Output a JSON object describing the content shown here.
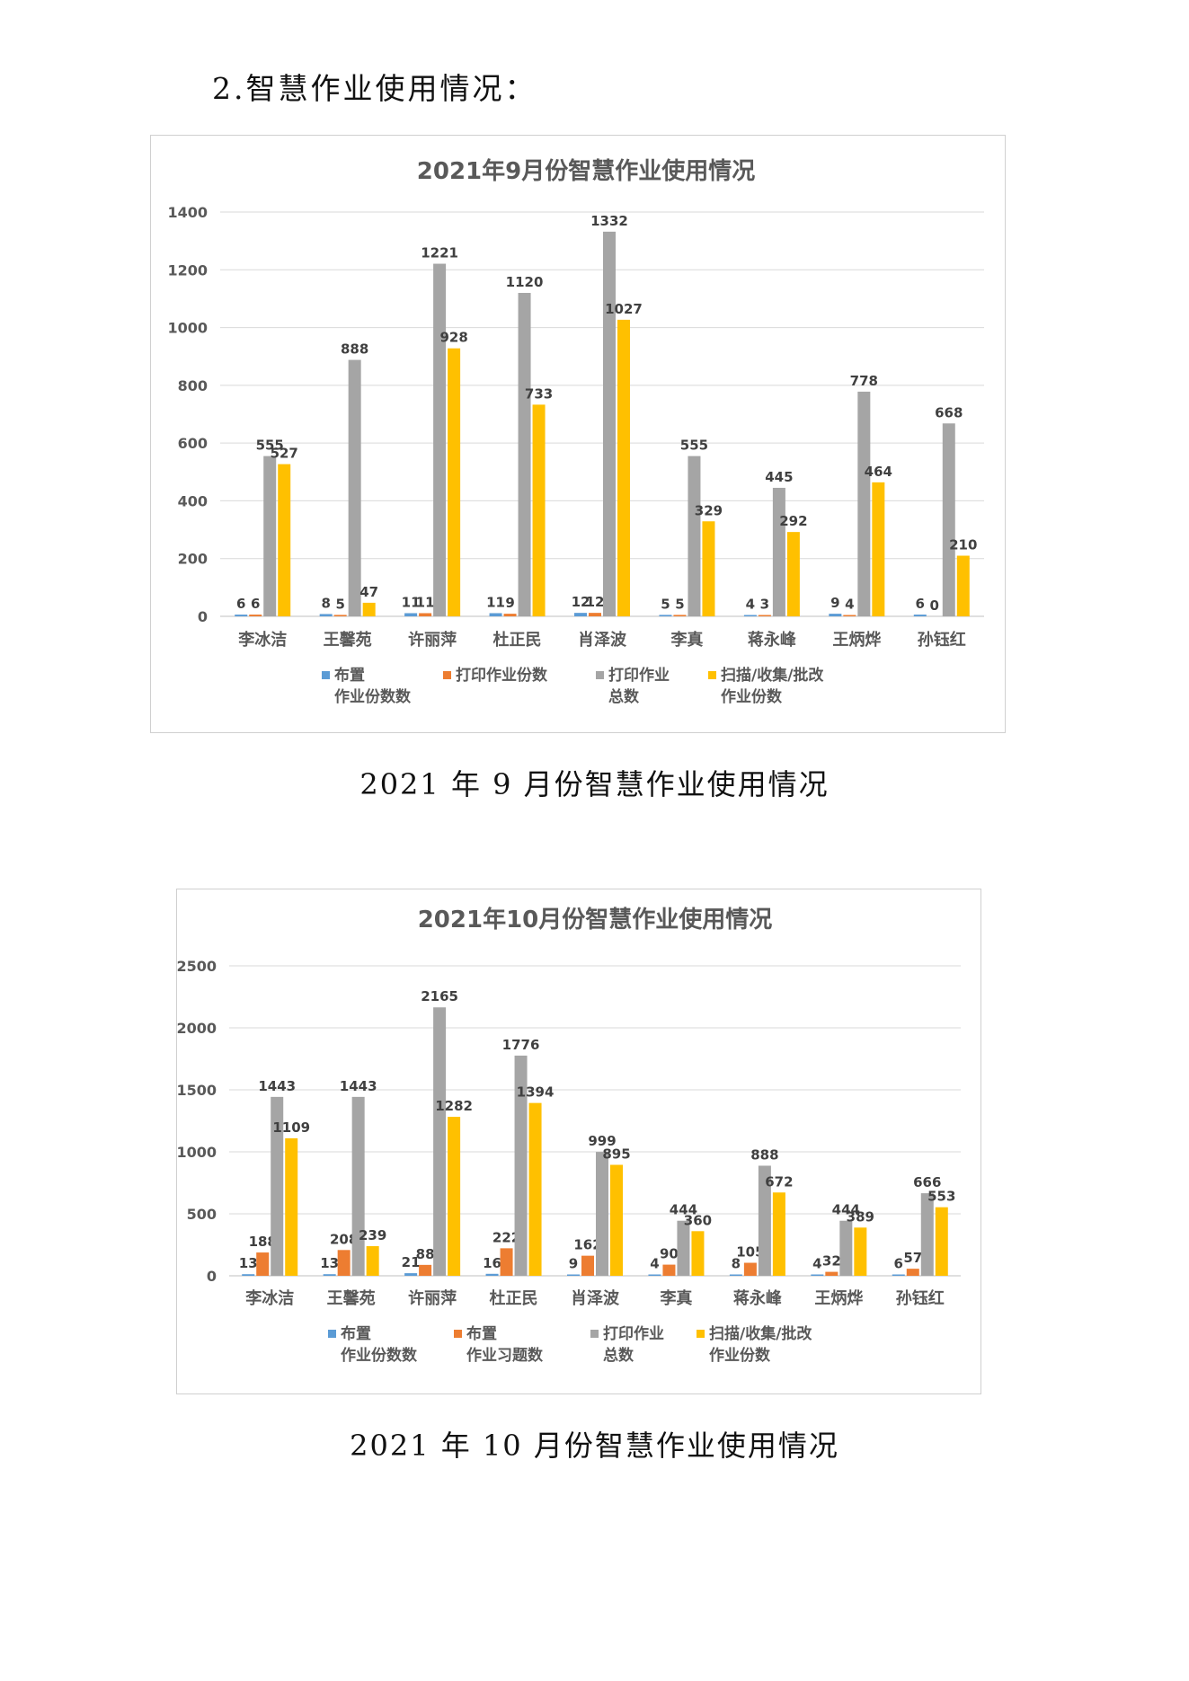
{
  "section_heading": "2.智慧作业使用情况：",
  "captions": [
    "2021 年 9 月份智慧作业使用情况",
    "2021 年 10 月份智慧作业使用情况"
  ],
  "colors": {
    "blue": "#5B9BD5",
    "orange": "#ED7D31",
    "gray": "#A5A5A5",
    "gold": "#FFC000",
    "grid": "#d9d9d9",
    "text": "#595959",
    "label": "#404040"
  },
  "chart_data": [
    {
      "type": "bar",
      "title": "2021年9月份智慧作业使用情况",
      "categories": [
        "李冰洁",
        "王馨苑",
        "许丽萍",
        "杜正民",
        "肖泽波",
        "李真",
        "蒋永峰",
        "王炳烨",
        "孙钰红"
      ],
      "ylim": [
        0,
        1400
      ],
      "yticks": [
        0,
        200,
        400,
        600,
        800,
        1000,
        1200,
        1400
      ],
      "grid": true,
      "legend_position": "bottom",
      "series": [
        {
          "name": "布置\n作业份数数",
          "color": "#5B9BD5",
          "values": [
            6,
            8,
            11,
            11,
            12,
            5,
            4,
            9,
            6
          ],
          "labels": [
            "6",
            "8",
            "11",
            "11",
            "12",
            "5",
            "4",
            "9",
            "6"
          ]
        },
        {
          "name": "打印作业份数",
          "color": "#ED7D31",
          "values": [
            6,
            5,
            11,
            9,
            12,
            5,
            3,
            4,
            0
          ],
          "labels": [
            "6",
            "5",
            "11",
            "9",
            "12",
            "5",
            "3",
            "4",
            "0"
          ]
        },
        {
          "name": "打印作业\n总数",
          "color": "#A5A5A5",
          "values": [
            555,
            888,
            1221,
            1120,
            1332,
            555,
            445,
            778,
            668
          ],
          "labels": [
            "555",
            "888",
            "1221",
            "1120",
            "1332",
            "555",
            "445",
            "778",
            "668"
          ]
        },
        {
          "name": "扫描/收集/批改\n作业份数",
          "color": "#FFC000",
          "values": [
            527,
            47,
            928,
            733,
            1027,
            329,
            292,
            464,
            210
          ],
          "labels": [
            "527",
            "47",
            "928",
            "733",
            "1027",
            "329",
            "292",
            "464",
            "210"
          ]
        }
      ]
    },
    {
      "type": "bar",
      "title": "2021年10月份智慧作业使用情况",
      "categories": [
        "李冰洁",
        "王馨苑",
        "许丽萍",
        "杜正民",
        "肖泽波",
        "李真",
        "蒋永峰",
        "王炳烨",
        "孙钰红"
      ],
      "ylim": [
        0,
        2500
      ],
      "yticks": [
        0,
        500,
        1000,
        1500,
        2000,
        2500
      ],
      "grid": true,
      "legend_position": "bottom",
      "series": [
        {
          "name": "布置\n作业份数数",
          "color": "#5B9BD5",
          "values": [
            13,
            13,
            21,
            16,
            9,
            4,
            8,
            4,
            6
          ],
          "labels": [
            "13",
            "13",
            "21",
            "16",
            "9",
            "4",
            "8",
            "4",
            "6"
          ]
        },
        {
          "name": "布置\n作业习题数",
          "color": "#ED7D31",
          "values": [
            188,
            208,
            88,
            222,
            162,
            90,
            105,
            32,
            57
          ],
          "labels": [
            "188",
            "208",
            "88",
            "222",
            "162",
            "90",
            "105",
            "32",
            "57"
          ]
        },
        {
          "name": "打印作业\n总数",
          "color": "#A5A5A5",
          "values": [
            1443,
            1443,
            2165,
            1776,
            999,
            444,
            888,
            444,
            666
          ],
          "labels": [
            "1443",
            "1443",
            "2165",
            "1776",
            "999",
            "444",
            "888",
            "444",
            "666"
          ]
        },
        {
          "name": "扫描/收集/批改\n作业份数",
          "color": "#FFC000",
          "values": [
            1109,
            239,
            1282,
            1394,
            895,
            360,
            672,
            389,
            553
          ],
          "labels": [
            "1109",
            "239",
            "1282",
            "1394",
            "895",
            "360",
            "672",
            "389",
            "553"
          ]
        }
      ]
    }
  ]
}
